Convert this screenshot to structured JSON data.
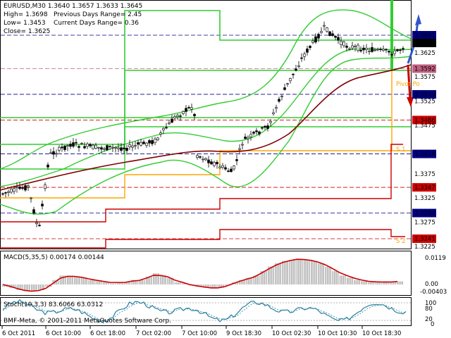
{
  "header": {
    "line1": "EURUSD,M30  1.3640 1.3657 1.3633 1.3645",
    "high": "High= 1.3698",
    "low": "Low= 1.3453",
    "close": "Close= 1.3625",
    "prev_range": "Previous Days Range= 2.45",
    "curr_range": "Current Days Range= 0.36"
  },
  "price_labels": [
    {
      "text": "1.3661",
      "value": 1.3661,
      "bg": "#000080",
      "fg": "#ffffff"
    },
    {
      "text": "1.3645",
      "value": 1.3645,
      "bg": "#000000",
      "fg": "#ffffff"
    },
    {
      "text": "1.3625",
      "value": 1.3625,
      "bg": "",
      "fg": "#000000"
    },
    {
      "text": "1.3592",
      "value": 1.3592,
      "bg": "#c06080",
      "fg": "#ffffff"
    },
    {
      "text": "1.3575",
      "value": 1.3575,
      "bg": "",
      "fg": "#000000"
    },
    {
      "text": "1.3539",
      "value": 1.3539,
      "bg": "#000080",
      "fg": "#ffffff"
    },
    {
      "text": "1.3525",
      "value": 1.3525,
      "bg": "",
      "fg": "#000000"
    },
    {
      "text": "1.3486",
      "value": 1.3486,
      "bg": "#cc0000",
      "fg": "#ffffff"
    },
    {
      "text": "1.3475",
      "value": 1.3475,
      "bg": "",
      "fg": "#000000"
    },
    {
      "text": "1.3416",
      "value": 1.3416,
      "bg": "#000080",
      "fg": "#ffffff"
    },
    {
      "text": "1.3375",
      "value": 1.3375,
      "bg": "",
      "fg": "#000000"
    },
    {
      "text": "1.3347",
      "value": 1.3347,
      "bg": "#cc0000",
      "fg": "#ffffff"
    },
    {
      "text": "1.3325",
      "value": 1.3325,
      "bg": "",
      "fg": "#000000"
    },
    {
      "text": "1.3294",
      "value": 1.3294,
      "bg": "#000080",
      "fg": "#ffffff"
    },
    {
      "text": "1.3275",
      "value": 1.3275,
      "bg": "",
      "fg": "#000000"
    },
    {
      "text": "1.3241",
      "value": 1.3241,
      "bg": "#cc0000",
      "fg": "#ffffff"
    },
    {
      "text": "1.3225",
      "value": 1.3225,
      "bg": "",
      "fg": "#000000"
    }
  ],
  "level_tags": {
    "pivot": "Pivot Po",
    "s1": "S 1",
    "s2": "S 2"
  },
  "macd": {
    "label": "MACD(5,35,5) 0.00174 0.00144",
    "axis_top": "0.0119",
    "axis_zero": "0.00",
    "axis_bottom": "-0.00403",
    "values": [
      -0.001,
      -0.0015,
      -0.0025,
      -0.003,
      -0.003,
      -0.0025,
      -0.001,
      0.002,
      0.004,
      0.004,
      0.0035,
      0.003,
      0.002,
      0.0015,
      0.001,
      0.0005,
      0.001,
      0.001,
      0.002,
      0.002,
      0.0035,
      0.005,
      0.004,
      0.003,
      0.001,
      0.0005,
      -0.0005,
      -0.001,
      -0.0015,
      -0.0018,
      -0.0015,
      -0.0005,
      0.001,
      0.002,
      0.003,
      0.004,
      0.006,
      0.008,
      0.0095,
      0.0105,
      0.011,
      0.0115,
      0.011,
      0.0105,
      0.0095,
      0.008,
      0.006,
      0.004,
      0.003,
      0.002,
      0.0015,
      0.001,
      0.001,
      0.001,
      0.001,
      0.0014
    ],
    "signal": [
      0.0,
      -0.0008,
      -0.0018,
      -0.0026,
      -0.003,
      -0.0027,
      -0.0017,
      0.0005,
      0.0028,
      0.0036,
      0.0036,
      0.0032,
      0.0025,
      0.0019,
      0.0014,
      0.0009,
      0.0009,
      0.0009,
      0.0015,
      0.0018,
      0.0028,
      0.0041,
      0.004,
      0.0034,
      0.0019,
      0.001,
      0.0,
      -0.0006,
      -0.0011,
      -0.0015,
      -0.0015,
      -0.0009,
      0.0003,
      0.0014,
      0.0024,
      0.0033,
      0.005,
      0.0068,
      0.0085,
      0.0098,
      0.0106,
      0.0112,
      0.0111,
      0.0107,
      0.0099,
      0.0087,
      0.007,
      0.0052,
      0.0039,
      0.0028,
      0.002,
      0.0014,
      0.0012,
      0.0011,
      0.0011,
      0.0013
    ]
  },
  "stoch": {
    "label": "Stoch(10,3,3) 83.6066 63.0312",
    "axis_top": "100",
    "axis_80": "80",
    "axis_20": "20",
    "axis_bottom": "0"
  },
  "copyright": "BMF-Meta, © 2001-2011 MetaQuotes Software Corp.",
  "time_labels": [
    "6 Oct 2011",
    "6 Oct 10:00",
    "6 Oct 18:00",
    "7 Oct 02:00",
    "7 Oct 10:00",
    "9 Oct 18:30",
    "10 Oct 02:30",
    "10 Oct 10:30",
    "10 Oct 18:30"
  ],
  "colors": {
    "green_band": "#33cc33",
    "ma": "#800000",
    "pivot": "#ffa500",
    "support": "#cc0000",
    "resistance": "#33cc33",
    "arrow_up": "#3355cc",
    "arrow_down": "#cc0000"
  }
}
